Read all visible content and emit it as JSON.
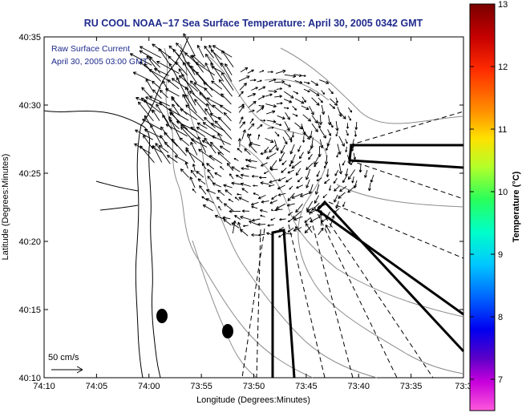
{
  "chart_data": {
    "type": "vector-map",
    "title": "RU COOL  NOAA−17  Sea Surface Temperature:  April 30, 2005 0342 GMT",
    "xlabel": "Longitude (Degrees:Minutes)",
    "ylabel": "Latitude (Degrees:Minutes)",
    "x_ticks": [
      "74:10",
      "74:05",
      "74:00",
      "73:55",
      "73:50",
      "73:45",
      "73:40",
      "73:35",
      "73:3"
    ],
    "y_ticks": [
      "40:35",
      "40:30",
      "40:25",
      "40:20",
      "40:15",
      "40:10"
    ],
    "annotation_line1": "Raw Surface Current",
    "annotation_line2": "April 30, 2005 03:00 GMT",
    "scale_label": "50 cm/s",
    "colorbar": {
      "label": "Temperature (°C)",
      "ticks": [
        "13",
        "12",
        "11",
        "10",
        "9",
        "8",
        "7"
      ],
      "range": [
        6.5,
        13
      ]
    },
    "colors": {
      "title": "#1e2a8c",
      "annotation": "#1e2a8c",
      "axis": "#000000",
      "land_contour": "#000000",
      "bathymetry": "#8c8c8c"
    }
  }
}
